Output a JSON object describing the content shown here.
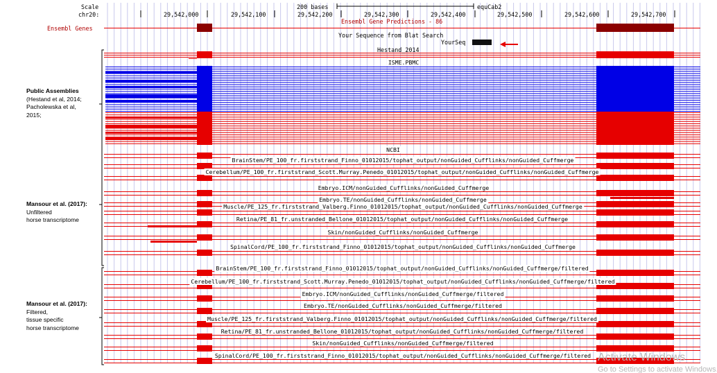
{
  "header": {
    "scale_label": "Scale",
    "chrom_label": "chr20:",
    "scale_bar_text": "200 bases",
    "assembly": "equCab2",
    "positions": [
      "29,542,000",
      "29,542,100",
      "29,542,200",
      "29,542,300",
      "29,542,400",
      "29,542,500",
      "29,542,600",
      "29,542,700"
    ],
    "gene_predictions": "Ensembl Gene Predictions - 86",
    "ensembl_track_label": "Ensembl Genes"
  },
  "blat": {
    "title": "Your Sequence from Blat Search",
    "seq_name": "YourSeq",
    "hestand": "Hestand_2014"
  },
  "groups": [
    {
      "title": "Public Assemblies",
      "lines": [
        "(Hestand et al, 2014;",
        "Pacholewska et al,",
        "2015;"
      ]
    },
    {
      "title": "Mansour et al. (2017):",
      "lines": [
        "Unfiltered",
        "horse transcriptome"
      ]
    },
    {
      "title": "Mansour et al. (2017):",
      "lines": [
        "Filtered,",
        "tissue specific",
        "horse transcriptome"
      ]
    }
  ],
  "tracks": {
    "isme": "ISME.PBMC",
    "ncbi": "NCBI",
    "unfiltered": [
      "BrainStem/PE_100_fr.firststrand_Finno_01012015/tophat_output/nonGuided_Cufflinks/nonGuided_Cuffmerge",
      "Cerebellum/PE_100_fr.firststrand_Scott.Murray.Penedo_01012015/tophat_output/nonGuided_Cufflinks/nonGuided_Cuffmerge",
      "Embryo.ICM/nonGuided_Cufflinks/nonGuided_Cuffmerge",
      "Embryo.TE/nonGuided_Cufflinks/nonGuided_Cuffmerge",
      "Muscle/PE_125_fr.firststrand_Valberg.Finno_01012015/tophat_output/nonGuided_Cufflinks/nonGuided_Cuffmerge",
      "Retina/PE_81_fr.unstranded_Bellone_01012015/tophat_output/nonGuided_Cufflinks/nonGuided_Cuffmerge",
      "Skin/nonGuided_Cufflinks/nonGuided_Cuffmerge",
      "SpinalCord/PE_100_fr.firststrand_Finno_01012015/tophat_output/nonGuided_Cufflinks/nonGuided_Cuffmerge"
    ],
    "filtered": [
      "BrainStem/PE_100_fr.firststrand_Finno_01012015/tophat_output/nonGuided_Cufflinks/nonGuided_Cuffmerge/filtered",
      "Cerebellum/PE_100_fr.firststrand_Scott.Murray.Penedo_01012015/tophat_output/nonGuided_Cufflinks/nonGuided_Cuffmerge/filtered",
      "Embryo.ICM/nonGuided_Cufflinks/nonGuided_Cuffmerge/filtered",
      "Embryo.TE/nonGuided_Cufflinks/nonGuided_Cuffmerge/filtered",
      "Muscle/PE_125_fr.firststrand_Valberg.Finno_01012015/tophat_output/nonGuided_Cufflinks/nonGuided_Cuffmerge/filtered",
      "Retina/PE_81_fr.unstranded_Bellone_01012015/tophat_output/nonGuided_Cufflinks/nonGuided_Cuffmerge/filtered",
      "Skin/nonGuided_Cufflinks/nonGuided_Cuffmerge/filtered",
      "SpinalCord/PE_100_fr.firststrand_Finno_01012015/tophat_output/nonGuided_Cufflinks/nonGuided_Cuffmerge/filtered"
    ]
  },
  "watermark": {
    "line1": "Activate Windows",
    "line2": "Go to Settings to activate Windows."
  },
  "colors": {
    "feature_red": "#e60000",
    "feature_blue": "#0000e6",
    "ensembl_dark": "#8b0000",
    "grid": "#c8c8ec",
    "arrow": "#e60000"
  }
}
